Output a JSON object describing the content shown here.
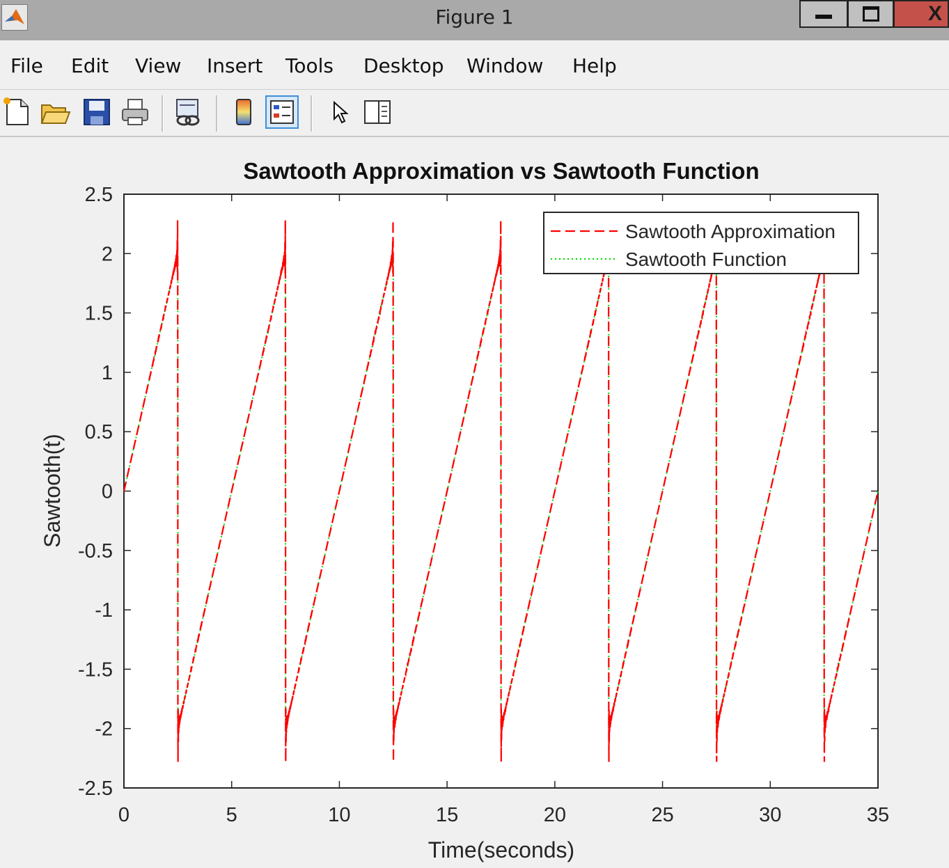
{
  "window": {
    "title": "Figure 1",
    "minimize_glyph": "—",
    "maximize_glyph": "□",
    "close_glyph": "X"
  },
  "menu": [
    "File",
    "Edit",
    "View",
    "Insert",
    "Tools",
    "Desktop",
    "Window",
    "Help"
  ],
  "toolbar": [
    {
      "icon": "new-figure-icon"
    },
    {
      "icon": "open-file-icon"
    },
    {
      "icon": "save-figure-icon"
    },
    {
      "icon": "print-figure-icon"
    },
    {
      "icon": "link-plot-icon"
    },
    {
      "icon": "insert-colorbar-icon"
    },
    {
      "icon": "insert-legend-icon",
      "active": true
    },
    {
      "icon": "edit-plot-pointer-icon"
    },
    {
      "icon": "show-plot-tools-icon"
    }
  ],
  "chart_data": {
    "type": "line",
    "title": "Sawtooth Approximation vs Sawtooth Function",
    "xlabel": "Time(seconds)",
    "ylabel": "Sawtooth(t)",
    "xlim": [
      0,
      35
    ],
    "ylim": [
      -2.5,
      2.5
    ],
    "xticks": [
      "0",
      "5",
      "10",
      "15",
      "20",
      "25",
      "30",
      "35"
    ],
    "yticks": [
      "2.5",
      "2",
      "1.5",
      "1",
      "0.5",
      "0",
      "-0.5",
      "-1",
      "-1.5",
      "-2",
      "-2.5"
    ],
    "grid": false,
    "legend_position": "top-right",
    "period": 5,
    "amplitude": 2,
    "discontinuities": [
      2.5,
      7.5,
      12.5,
      17.5,
      22.5,
      27.5,
      32.5
    ],
    "series": [
      {
        "name": "Sawtooth Approximation",
        "color": "#ff0000",
        "style": "dashed",
        "overshoot_peak": 2.3
      },
      {
        "name": "Sawtooth Function",
        "color": "#00dd00",
        "style": "dotted"
      }
    ]
  }
}
